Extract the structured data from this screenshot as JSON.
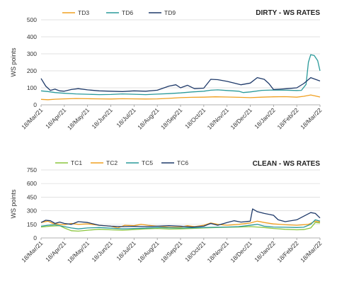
{
  "chart_data": [
    {
      "type": "line",
      "title": "DIRTY - WS RATES",
      "ylabel": "WS points",
      "xlabel": "",
      "ylim": [
        0,
        500
      ],
      "yticks": [
        0,
        100,
        200,
        300,
        400,
        500
      ],
      "xtick_labels": [
        "18/Mar/21",
        "18/Apr/21",
        "18/May/21",
        "18/Jun/21",
        "18/Jul/21",
        "18/Aug/21",
        "18/Sep/21",
        "18/Oct/21",
        "18/Nov/21",
        "18/Dec/21",
        "18/Jan/22",
        "18/Feb/22",
        "18/Mar/22"
      ],
      "legend_position": "top-left",
      "grid": true,
      "series": [
        {
          "name": "TD3",
          "color": "#f0a020",
          "points": [
            [
              0,
              32
            ],
            [
              0.3,
              30
            ],
            [
              0.6,
              33
            ],
            [
              1,
              35
            ],
            [
              1.5,
              37
            ],
            [
              2,
              36
            ],
            [
              2.5,
              35
            ],
            [
              3,
              34
            ],
            [
              3.5,
              36
            ],
            [
              4,
              35
            ],
            [
              4.5,
              34
            ],
            [
              5,
              35
            ],
            [
              5.5,
              38
            ],
            [
              6,
              42
            ],
            [
              6.5,
              44
            ],
            [
              7,
              45
            ],
            [
              7.5,
              47
            ],
            [
              8,
              46
            ],
            [
              8.5,
              44
            ],
            [
              9,
              42
            ],
            [
              9.5,
              45
            ],
            [
              10,
              47
            ],
            [
              10.5,
              48
            ],
            [
              11,
              45
            ],
            [
              11.3,
              50
            ],
            [
              11.6,
              58
            ],
            [
              11.8,
              52
            ],
            [
              12,
              46
            ]
          ]
        },
        {
          "name": "TD6",
          "color": "#2a9a9a",
          "points": [
            [
              0,
              82
            ],
            [
              0.3,
              78
            ],
            [
              0.6,
              72
            ],
            [
              1,
              68
            ],
            [
              1.5,
              64
            ],
            [
              2,
              62
            ],
            [
              2.5,
              60
            ],
            [
              3,
              61
            ],
            [
              3.5,
              64
            ],
            [
              4,
              62
            ],
            [
              4.5,
              60
            ],
            [
              5,
              63
            ],
            [
              5.5,
              66
            ],
            [
              6,
              70
            ],
            [
              6.5,
              76
            ],
            [
              7,
              80
            ],
            [
              7.3,
              86
            ],
            [
              7.6,
              88
            ],
            [
              8,
              84
            ],
            [
              8.5,
              80
            ],
            [
              8.7,
              72
            ],
            [
              9,
              76
            ],
            [
              9.5,
              85
            ],
            [
              10,
              87
            ],
            [
              10.5,
              86
            ],
            [
              11,
              84
            ],
            [
              11.2,
              85
            ],
            [
              11.4,
              120
            ],
            [
              11.5,
              250
            ],
            [
              11.6,
              295
            ],
            [
              11.75,
              290
            ],
            [
              11.9,
              260
            ],
            [
              12,
              200
            ]
          ]
        },
        {
          "name": "TD9",
          "color": "#1f3a6a",
          "points": [
            [
              0,
              155
            ],
            [
              0.2,
              110
            ],
            [
              0.4,
              85
            ],
            [
              0.6,
              92
            ],
            [
              0.8,
              82
            ],
            [
              1,
              80
            ],
            [
              1.3,
              90
            ],
            [
              1.6,
              95
            ],
            [
              2,
              88
            ],
            [
              2.5,
              82
            ],
            [
              3,
              80
            ],
            [
              3.5,
              78
            ],
            [
              4,
              82
            ],
            [
              4.5,
              80
            ],
            [
              5,
              86
            ],
            [
              5.5,
              110
            ],
            [
              5.8,
              118
            ],
            [
              6,
              100
            ],
            [
              6.3,
              115
            ],
            [
              6.6,
              95
            ],
            [
              7,
              98
            ],
            [
              7.3,
              150
            ],
            [
              7.6,
              148
            ],
            [
              8,
              138
            ],
            [
              8.3,
              128
            ],
            [
              8.6,
              118
            ],
            [
              9,
              128
            ],
            [
              9.3,
              160
            ],
            [
              9.6,
              150
            ],
            [
              9.8,
              125
            ],
            [
              10,
              90
            ],
            [
              10.3,
              92
            ],
            [
              10.6,
              95
            ],
            [
              11,
              100
            ],
            [
              11.3,
              125
            ],
            [
              11.6,
              160
            ],
            [
              11.8,
              150
            ],
            [
              12,
              140
            ]
          ]
        }
      ]
    },
    {
      "type": "line",
      "title": "CLEAN - WS RATES",
      "ylabel": "WS points",
      "xlabel": "",
      "ylim": [
        0,
        750
      ],
      "yticks": [
        0,
        150,
        300,
        450,
        600,
        750
      ],
      "xtick_labels": [
        "18/Mar/21",
        "18/Apr/21",
        "18/May/21",
        "18/Jun/21",
        "18/Jul/21",
        "18/Aug/21",
        "18/Sep/21",
        "18/Oct/21",
        "18/Nov/21",
        "18/Dec/21",
        "18/Jan/22",
        "18/Feb/22",
        "18/Mar/22"
      ],
      "legend_position": "top-left",
      "grid": true,
      "series": [
        {
          "name": "TC1",
          "color": "#8cc63f",
          "points": [
            [
              0,
              120
            ],
            [
              0.4,
              130
            ],
            [
              0.8,
              135
            ],
            [
              1,
              110
            ],
            [
              1.3,
              80
            ],
            [
              1.6,
              75
            ],
            [
              2,
              85
            ],
            [
              2.5,
              95
            ],
            [
              3,
              90
            ],
            [
              3.5,
              85
            ],
            [
              4,
              92
            ],
            [
              4.5,
              100
            ],
            [
              5,
              105
            ],
            [
              5.5,
              98
            ],
            [
              6,
              100
            ],
            [
              6.5,
              105
            ],
            [
              7,
              110
            ],
            [
              7.5,
              115
            ],
            [
              8,
              118
            ],
            [
              8.5,
              120
            ],
            [
              9,
              125
            ],
            [
              9.3,
              120
            ],
            [
              9.6,
              115
            ],
            [
              10,
              105
            ],
            [
              10.5,
              95
            ],
            [
              11,
              90
            ],
            [
              11.3,
              92
            ],
            [
              11.6,
              110
            ],
            [
              11.8,
              170
            ],
            [
              12,
              165
            ]
          ]
        },
        {
          "name": "TC2",
          "color": "#f0a020",
          "points": [
            [
              0,
              170
            ],
            [
              0.3,
              185
            ],
            [
              0.5,
              160
            ],
            [
              0.8,
              150
            ],
            [
              1,
              145
            ],
            [
              1.3,
              160
            ],
            [
              1.6,
              150
            ],
            [
              2,
              155
            ],
            [
              2.5,
              140
            ],
            [
              3,
              130
            ],
            [
              3.3,
              110
            ],
            [
              3.6,
              140
            ],
            [
              4,
              135
            ],
            [
              4.3,
              150
            ],
            [
              4.6,
              140
            ],
            [
              5,
              130
            ],
            [
              5.5,
              118
            ],
            [
              6,
              120
            ],
            [
              6.3,
              135
            ],
            [
              6.6,
              125
            ],
            [
              7,
              140
            ],
            [
              7.3,
              165
            ],
            [
              7.6,
              150
            ],
            [
              8,
              140
            ],
            [
              8.5,
              150
            ],
            [
              9,
              165
            ],
            [
              9.3,
              185
            ],
            [
              9.6,
              170
            ],
            [
              10,
              155
            ],
            [
              10.5,
              145
            ],
            [
              11,
              140
            ],
            [
              11.5,
              150
            ],
            [
              11.8,
              185
            ],
            [
              12,
              175
            ]
          ]
        },
        {
          "name": "TC5",
          "color": "#2a9a9a",
          "points": [
            [
              0,
              130
            ],
            [
              0.3,
              140
            ],
            [
              0.6,
              145
            ],
            [
              1,
              125
            ],
            [
              1.3,
              110
            ],
            [
              1.6,
              100
            ],
            [
              2,
              110
            ],
            [
              2.5,
              115
            ],
            [
              3,
              108
            ],
            [
              3.5,
              100
            ],
            [
              4,
              105
            ],
            [
              4.5,
              108
            ],
            [
              5,
              115
            ],
            [
              5.5,
              112
            ],
            [
              6,
              110
            ],
            [
              6.5,
              112
            ],
            [
              7,
              115
            ],
            [
              7.5,
              118
            ],
            [
              8,
              120
            ],
            [
              8.5,
              125
            ],
            [
              9,
              140
            ],
            [
              9.3,
              150
            ],
            [
              9.6,
              130
            ],
            [
              10,
              120
            ],
            [
              10.5,
              118
            ],
            [
              11,
              115
            ],
            [
              11.3,
              118
            ],
            [
              11.6,
              150
            ],
            [
              11.8,
              200
            ],
            [
              12,
              185
            ]
          ]
        },
        {
          "name": "TC6",
          "color": "#1f3a6a",
          "points": [
            [
              0,
              170
            ],
            [
              0.2,
              195
            ],
            [
              0.4,
              190
            ],
            [
              0.6,
              160
            ],
            [
              0.8,
              175
            ],
            [
              1,
              160
            ],
            [
              1.3,
              150
            ],
            [
              1.6,
              180
            ],
            [
              2,
              170
            ],
            [
              2.5,
              140
            ],
            [
              3,
              130
            ],
            [
              3.5,
              125
            ],
            [
              4,
              128
            ],
            [
              4.5,
              125
            ],
            [
              5,
              130
            ],
            [
              5.5,
              135
            ],
            [
              6,
              130
            ],
            [
              6.5,
              120
            ],
            [
              7,
              130
            ],
            [
              7.3,
              160
            ],
            [
              7.6,
              140
            ],
            [
              8,
              170
            ],
            [
              8.3,
              190
            ],
            [
              8.6,
              175
            ],
            [
              9,
              185
            ],
            [
              9.1,
              320
            ],
            [
              9.3,
              290
            ],
            [
              9.6,
              270
            ],
            [
              10,
              250
            ],
            [
              10.2,
              200
            ],
            [
              10.5,
              180
            ],
            [
              11,
              200
            ],
            [
              11.3,
              240
            ],
            [
              11.6,
              280
            ],
            [
              11.8,
              270
            ],
            [
              12,
              220
            ]
          ]
        }
      ]
    }
  ]
}
